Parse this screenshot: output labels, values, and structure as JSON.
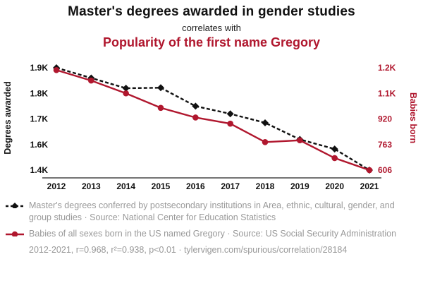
{
  "header": {
    "title": "Master's degrees awarded in gender studies",
    "subtitle": "correlates with",
    "title2": "Popularity of the first name Gregory"
  },
  "colors": {
    "accent_red": "#b0172e",
    "ink_black": "#111111",
    "legend_gray": "#999999"
  },
  "chart_data": {
    "type": "line",
    "x": [
      2012,
      2013,
      2014,
      2015,
      2016,
      2017,
      2018,
      2019,
      2020,
      2021
    ],
    "series": [
      {
        "name": "Master's degrees awarded in gender studies",
        "axis": "left",
        "color": "#111111",
        "style": "dashed",
        "marker": "diamond",
        "values": [
          1900,
          1860,
          1820,
          1822,
          1750,
          1720,
          1685,
          1620,
          1565,
          1400
        ]
      },
      {
        "name": "Popularity of the first name Gregory",
        "axis": "right",
        "color": "#b0172e",
        "style": "solid",
        "marker": "circle",
        "values": [
          1191,
          1150,
          1100,
          998,
          930,
          891,
          778,
          789,
          680,
          606
        ]
      }
    ],
    "left_axis": {
      "label": "Degrees awarded",
      "tick_values": [
        1900,
        1800,
        1700,
        1600,
        1400
      ],
      "tick_labels": [
        "1.9K",
        "1.8K",
        "1.7K",
        "1.6K",
        "1.4K"
      ]
    },
    "right_axis": {
      "label": "Babies born",
      "tick_values": [
        1200,
        1100,
        920,
        763,
        606
      ],
      "tick_labels": [
        "1.2K",
        "1.1K",
        "920",
        "763",
        "606"
      ]
    },
    "x_axis_range": [
      2012,
      2021
    ],
    "grid": false,
    "legend_position": "bottom"
  },
  "legend": {
    "entries": [
      {
        "text": "Master's degrees conferred by postsecondary institutions in Area, ethnic, cultural, gender, and group studies · Source: National Center for Education Statistics"
      },
      {
        "text": "Babies of all sexes born in the US named Gregory · Source: US Social Security Administration"
      }
    ],
    "stats": "2012-2021, r=0.968, r²=0.938, p<0.01 · tylervigen.com/spurious/correlation/28184"
  }
}
